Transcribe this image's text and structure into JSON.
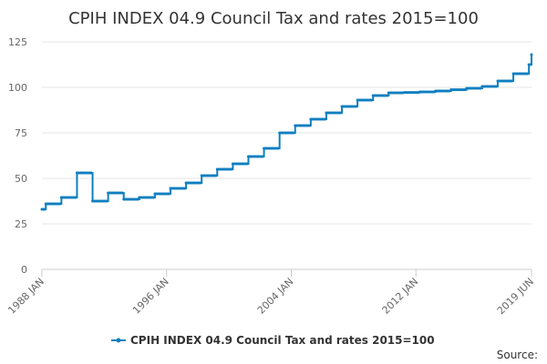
{
  "chart_data": {
    "type": "line",
    "title": "CPIH INDEX 04.9 Council Tax and rates 2015=100",
    "xlabel": "",
    "ylabel": "",
    "ylim": [
      0,
      125
    ],
    "y_ticks": [
      "0",
      "25",
      "50",
      "75",
      "100",
      "125"
    ],
    "x_tick_labels": [
      "1988 JAN",
      "1996 JAN",
      "2004 JAN",
      "2012 JAN",
      "2019 JUN"
    ],
    "x_range": [
      "1988-01",
      "2019-06"
    ],
    "grid": true,
    "legend_position": "bottom",
    "series": [
      {
        "name": "CPIH INDEX 04.9 Council Tax and rates 2015=100",
        "color": "#0f7fc0",
        "x": [
          "1988-01",
          "1988-04",
          "1989-04",
          "1990-04",
          "1991-04",
          "1992-04",
          "1993-04",
          "1994-04",
          "1995-04",
          "1996-04",
          "1997-04",
          "1998-04",
          "1999-04",
          "2000-04",
          "2001-04",
          "2002-04",
          "2003-04",
          "2004-04",
          "2005-04",
          "2006-04",
          "2007-04",
          "2008-04",
          "2009-04",
          "2010-04",
          "2011-04",
          "2012-04",
          "2013-04",
          "2014-04",
          "2015-04",
          "2016-04",
          "2017-04",
          "2018-04",
          "2019-04",
          "2019-06"
        ],
        "values": [
          33,
          36,
          39.5,
          53,
          37.5,
          42,
          38.5,
          39.5,
          41.5,
          44.5,
          47.5,
          51.5,
          55,
          58,
          62,
          66.5,
          75,
          79,
          82.5,
          86,
          89.5,
          93,
          95.5,
          97,
          97.2,
          97.5,
          98,
          98.7,
          99.5,
          100.5,
          103.5,
          107.5,
          112.5,
          118
        ]
      }
    ]
  },
  "source_label": "Source:"
}
